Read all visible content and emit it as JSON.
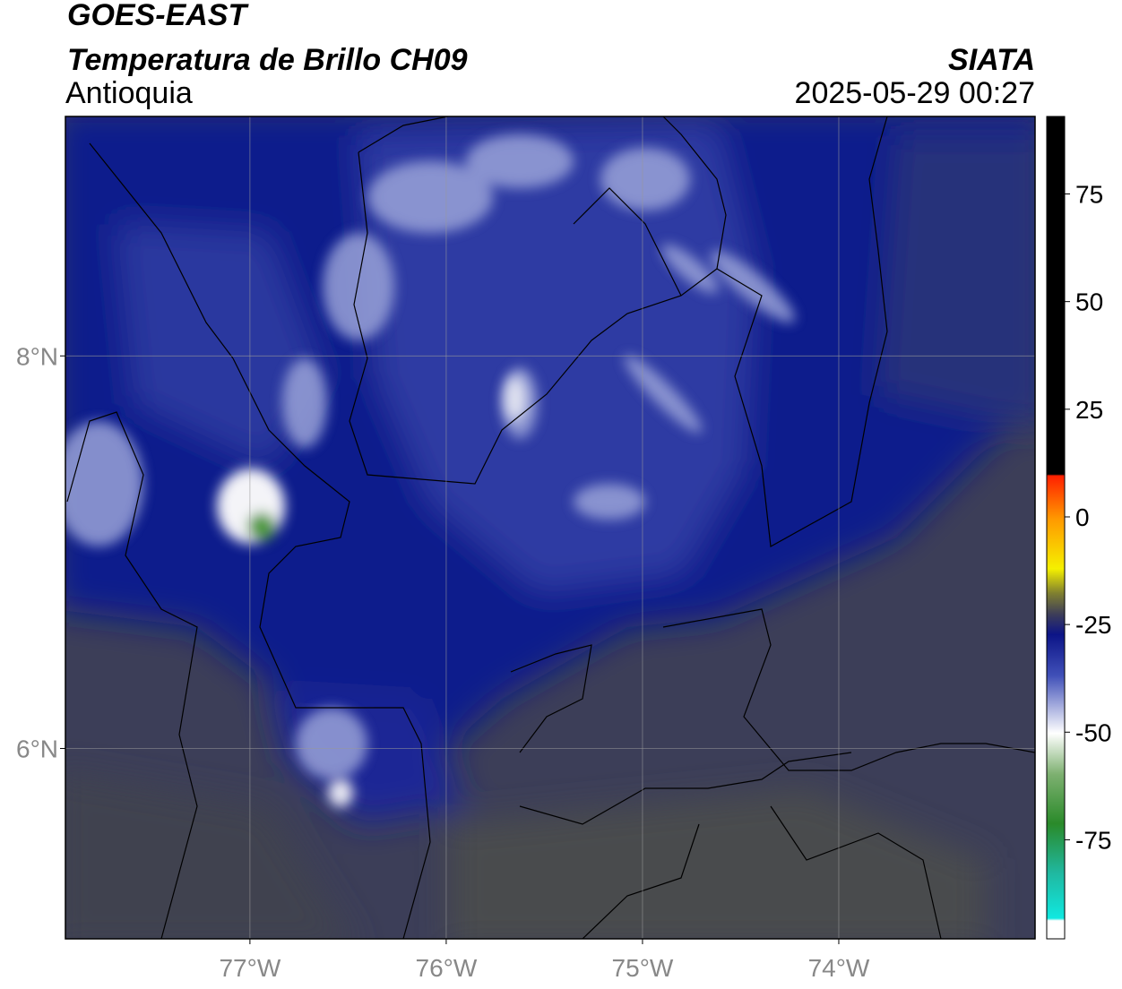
{
  "header": {
    "satellite": "GOES-EAST",
    "product": "Temperatura de Brillo CH09",
    "region": "Antioquia",
    "source": "SIATA",
    "datetime": "2025-05-29 00:27"
  },
  "map": {
    "xlim": [
      -77.94,
      -73.0
    ],
    "ylim": [
      5.03,
      9.22
    ],
    "xticks": [
      {
        "value": -77,
        "label": "77°W"
      },
      {
        "value": -76,
        "label": "76°W"
      },
      {
        "value": -75,
        "label": "75°W"
      },
      {
        "value": -74,
        "label": "74°W"
      }
    ],
    "yticks": [
      {
        "value": 8,
        "label": "8°N"
      },
      {
        "value": 6,
        "label": "6°N"
      }
    ],
    "grid": true
  },
  "colorbar": {
    "lim": [
      -98,
      93
    ],
    "ticks": [
      75,
      50,
      25,
      0,
      -25,
      -50,
      -75
    ]
  }
}
